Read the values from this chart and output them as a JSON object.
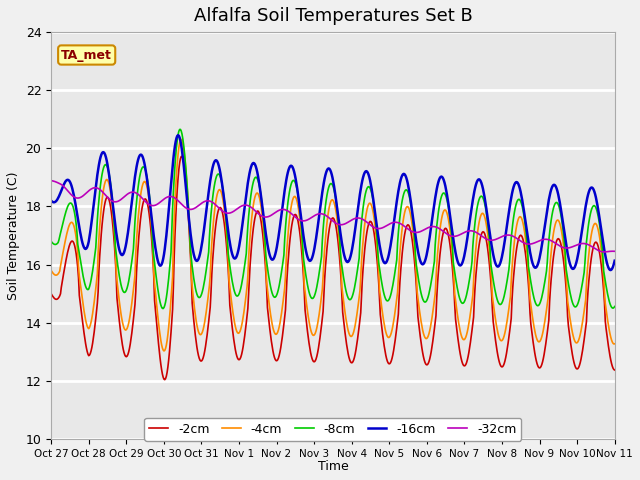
{
  "title": "Alfalfa Soil Temperatures Set B",
  "xlabel": "Time",
  "ylabel": "Soil Temperature (C)",
  "ylim": [
    10,
    24
  ],
  "annotation": "TA_met",
  "legend_labels": [
    "-2cm",
    "-4cm",
    "-8cm",
    "-16cm",
    "-32cm"
  ],
  "line_colors": [
    "#cc0000",
    "#ff8c00",
    "#00cc00",
    "#0000cc",
    "#bb00bb"
  ],
  "line_widths": [
    1.2,
    1.2,
    1.2,
    1.8,
    1.2
  ],
  "bg_color": "#e8e8e8",
  "xtick_labels": [
    "Oct 27",
    "Oct 28",
    "Oct 29",
    "Oct 30",
    "Oct 31",
    "Nov 1",
    "Nov 2",
    "Nov 3",
    "Nov 4",
    "Nov 5",
    "Nov 6",
    "Nov 7",
    "Nov 8",
    "Nov 9",
    "Nov 10",
    "Nov 11"
  ],
  "days": 15
}
